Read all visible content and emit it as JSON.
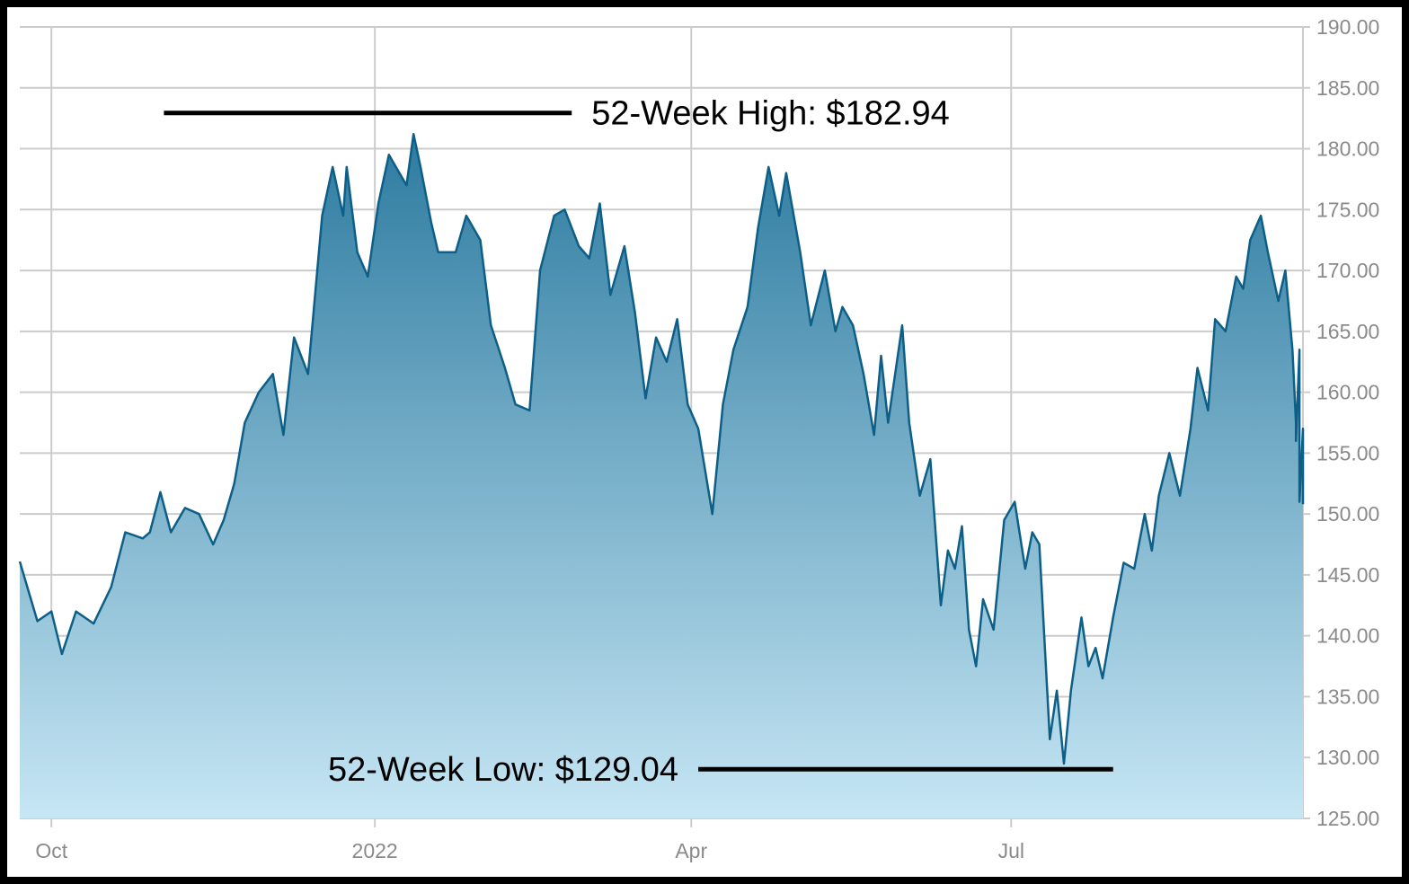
{
  "chart_data": {
    "type": "area",
    "title": "",
    "xlabel": "",
    "ylabel": "",
    "ylim": [
      125,
      190
    ],
    "y_ticks": [
      "125.00",
      "130.00",
      "135.00",
      "140.00",
      "145.00",
      "150.00",
      "155.00",
      "160.00",
      "165.00",
      "170.00",
      "175.00",
      "180.00",
      "185.00",
      "190.00"
    ],
    "y_axis_side": "right",
    "x_ticks": [
      {
        "label": "Oct",
        "date": "2021-10-01"
      },
      {
        "label": "2022",
        "date": "2022-01-01"
      },
      {
        "label": "Apr",
        "date": "2022-04-01"
      },
      {
        "label": "Jul",
        "date": "2022-07-01"
      }
    ],
    "x_range": [
      "2021-09-22",
      "2022-09-22"
    ],
    "grid": true,
    "colors": {
      "line": "#0d5f88",
      "fill_top": "#2d7ba0",
      "fill_bottom": "#c6e6f4",
      "grid": "#cccccc",
      "annotation": "#000000"
    },
    "series": [
      {
        "values": [
          [
            "2021-09-22",
            146.1
          ],
          [
            "2021-09-27",
            141.2
          ],
          [
            "2021-10-01",
            142.0
          ],
          [
            "2021-10-04",
            138.5
          ],
          [
            "2021-10-08",
            142.0
          ],
          [
            "2021-10-13",
            141.0
          ],
          [
            "2021-10-18",
            144.0
          ],
          [
            "2021-10-22",
            148.5
          ],
          [
            "2021-10-27",
            148.0
          ],
          [
            "2021-10-29",
            148.5
          ],
          [
            "2021-11-01",
            151.8
          ],
          [
            "2021-11-04",
            148.5
          ],
          [
            "2021-11-08",
            150.5
          ],
          [
            "2021-11-12",
            150.0
          ],
          [
            "2021-11-16",
            147.5
          ],
          [
            "2021-11-19",
            149.5
          ],
          [
            "2021-11-22",
            152.5
          ],
          [
            "2021-11-25",
            157.5
          ],
          [
            "2021-11-29",
            160.0
          ],
          [
            "2021-12-03",
            161.5
          ],
          [
            "2021-12-06",
            156.5
          ],
          [
            "2021-12-09",
            164.5
          ],
          [
            "2021-12-13",
            161.5
          ],
          [
            "2021-12-17",
            174.5
          ],
          [
            "2021-12-20",
            178.5
          ],
          [
            "2021-12-23",
            174.5
          ],
          [
            "2021-12-24",
            178.5
          ],
          [
            "2021-12-27",
            171.5
          ],
          [
            "2021-12-30",
            169.5
          ],
          [
            "2022-01-02",
            175.5
          ],
          [
            "2022-01-05",
            179.5
          ],
          [
            "2022-01-07",
            178.5
          ],
          [
            "2022-01-10",
            177.0
          ],
          [
            "2022-01-12",
            181.2
          ],
          [
            "2022-01-14",
            178.5
          ],
          [
            "2022-01-17",
            174.0
          ],
          [
            "2022-01-19",
            171.5
          ],
          [
            "2022-01-24",
            171.5
          ],
          [
            "2022-01-27",
            174.5
          ],
          [
            "2022-01-31",
            172.5
          ],
          [
            "2022-02-03",
            165.5
          ],
          [
            "2022-02-07",
            162.0
          ],
          [
            "2022-02-10",
            159.0
          ],
          [
            "2022-02-14",
            158.5
          ],
          [
            "2022-02-17",
            170.0
          ],
          [
            "2022-02-21",
            174.5
          ],
          [
            "2022-02-24",
            175.0
          ],
          [
            "2022-02-28",
            172.0
          ],
          [
            "2022-03-03",
            171.0
          ],
          [
            "2022-03-06",
            175.5
          ],
          [
            "2022-03-09",
            168.0
          ],
          [
            "2022-03-13",
            172.0
          ],
          [
            "2022-03-16",
            166.5
          ],
          [
            "2022-03-19",
            159.5
          ],
          [
            "2022-03-22",
            164.5
          ],
          [
            "2022-03-25",
            162.5
          ],
          [
            "2022-03-28",
            166.0
          ],
          [
            "2022-03-31",
            159.0
          ],
          [
            "2022-04-03",
            157.0
          ],
          [
            "2022-04-07",
            150.0
          ],
          [
            "2022-04-10",
            159.0
          ],
          [
            "2022-04-13",
            163.5
          ],
          [
            "2022-04-17",
            167.0
          ],
          [
            "2022-04-20",
            173.5
          ],
          [
            "2022-04-23",
            178.5
          ],
          [
            "2022-04-26",
            174.5
          ],
          [
            "2022-04-28",
            178.0
          ],
          [
            "2022-05-02",
            171.5
          ],
          [
            "2022-05-05",
            165.5
          ],
          [
            "2022-05-09",
            170.0
          ],
          [
            "2022-05-12",
            165.0
          ],
          [
            "2022-05-14",
            167.0
          ],
          [
            "2022-05-17",
            165.5
          ],
          [
            "2022-05-20",
            161.5
          ],
          [
            "2022-05-23",
            156.5
          ],
          [
            "2022-05-25",
            163.0
          ],
          [
            "2022-05-27",
            157.5
          ],
          [
            "2022-05-31",
            165.5
          ],
          [
            "2022-06-02",
            157.5
          ],
          [
            "2022-06-05",
            151.5
          ],
          [
            "2022-06-08",
            154.5
          ],
          [
            "2022-06-11",
            142.5
          ],
          [
            "2022-06-13",
            147.0
          ],
          [
            "2022-06-15",
            145.5
          ],
          [
            "2022-06-17",
            149.0
          ],
          [
            "2022-06-19",
            140.5
          ],
          [
            "2022-06-21",
            137.5
          ],
          [
            "2022-06-23",
            143.0
          ],
          [
            "2022-06-26",
            140.5
          ],
          [
            "2022-06-29",
            149.5
          ],
          [
            "2022-07-02",
            151.0
          ],
          [
            "2022-07-05",
            145.5
          ],
          [
            "2022-07-07",
            148.5
          ],
          [
            "2022-07-09",
            147.5
          ],
          [
            "2022-07-12",
            131.5
          ],
          [
            "2022-07-14",
            135.5
          ],
          [
            "2022-07-16",
            129.5
          ],
          [
            "2022-07-18",
            135.5
          ],
          [
            "2022-07-21",
            141.5
          ],
          [
            "2022-07-23",
            137.5
          ],
          [
            "2022-07-25",
            139.0
          ],
          [
            "2022-07-27",
            136.5
          ],
          [
            "2022-07-30",
            141.5
          ],
          [
            "2022-08-02",
            146.0
          ],
          [
            "2022-08-05",
            145.5
          ],
          [
            "2022-08-08",
            150.0
          ],
          [
            "2022-08-10",
            147.0
          ],
          [
            "2022-08-12",
            151.5
          ],
          [
            "2022-08-15",
            155.0
          ],
          [
            "2022-08-18",
            151.5
          ],
          [
            "2022-08-21",
            157.0
          ],
          [
            "2022-08-23",
            162.0
          ],
          [
            "2022-08-26",
            158.5
          ],
          [
            "2022-08-28",
            166.0
          ],
          [
            "2022-08-31",
            165.0
          ],
          [
            "2022-09-03",
            169.5
          ],
          [
            "2022-09-05",
            168.5
          ],
          [
            "2022-09-07",
            172.5
          ],
          [
            "2022-09-10",
            174.5
          ],
          [
            "2022-09-12",
            171.5
          ],
          [
            "2022-09-15",
            167.5
          ],
          [
            "2022-09-17",
            170.0
          ],
          [
            "2022-09-19",
            163.5
          ],
          [
            "2022-09-20",
            157.5
          ],
          [
            "2022-09-20",
            156.0
          ],
          [
            "2022-09-21",
            163.5
          ],
          [
            "2022-09-21",
            154.5
          ],
          [
            "2022-09-21",
            151.0
          ],
          [
            "2022-09-22",
            157.0
          ],
          [
            "2022-09-22",
            150.8
          ]
        ]
      }
    ],
    "annotations": [
      {
        "text": "52-Week High: $182.94",
        "value": 182.94,
        "line_from": "2021-11-02",
        "line_to": "2022-02-26"
      },
      {
        "text": "52-Week Low: $129.04",
        "value": 129.04,
        "line_from": "2022-04-03",
        "line_to": "2022-07-30"
      }
    ]
  }
}
